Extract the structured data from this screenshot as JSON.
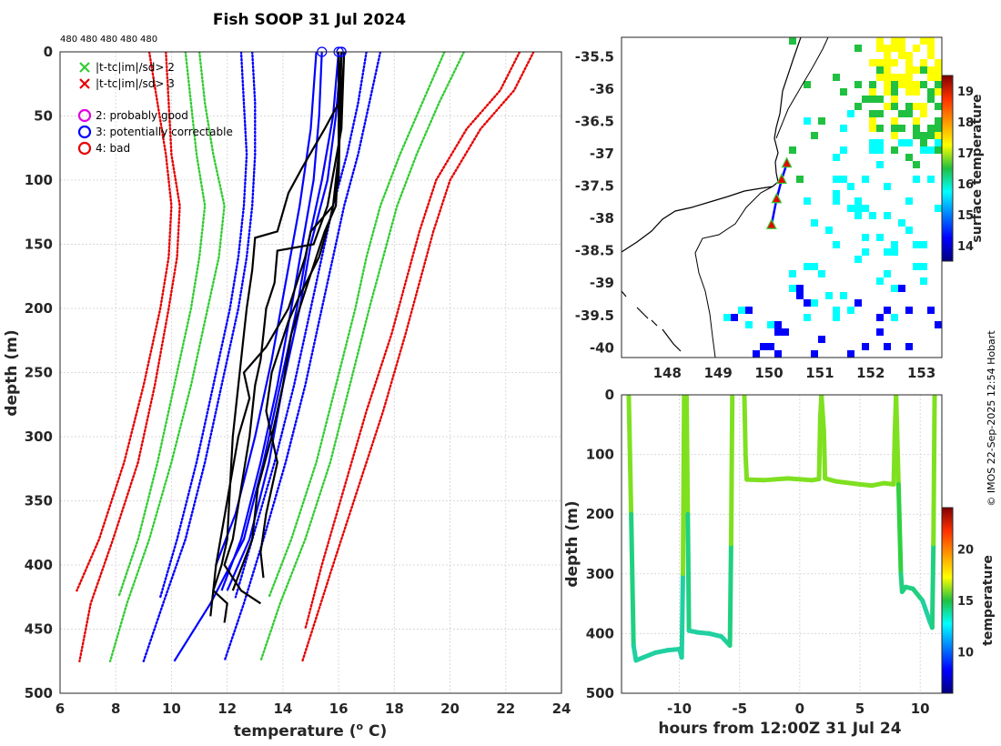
{
  "page": {
    "title": "Fish SOOP 31 Jul 2024",
    "credit": "© IMOS 22-Sep-2025 12:54 Hobart"
  },
  "colors": {
    "axis": "#262626",
    "grid": "#d9d9d9",
    "black": "#000000",
    "blue": "#0000ff",
    "green": "#33cc33",
    "red": "#e60000",
    "magenta": "#e000e0"
  },
  "chart_data": [
    {
      "id": "profiles",
      "type": "line",
      "xlabel": "temperature (",
      "xlabel_sup": "o",
      "xlabel_end": " C)",
      "ylabel": "depth (m)",
      "xlim": [
        6,
        24
      ],
      "ylim": [
        0,
        500
      ],
      "y_reversed": true,
      "xticks": [
        6,
        8,
        10,
        12,
        14,
        16,
        18,
        20,
        22,
        24
      ],
      "yticks": [
        0,
        50,
        100,
        150,
        200,
        250,
        300,
        350,
        400,
        450,
        500
      ],
      "top_labels": [
        "480",
        "480",
        "480",
        "480",
        "480"
      ],
      "legend": [
        {
          "marker": "x",
          "color": "#33cc33",
          "label": "|t-tc|im|/sd> 2"
        },
        {
          "marker": "x",
          "color": "#e60000",
          "label": "|t-tc|im|/sd> 3"
        },
        {
          "marker": "o",
          "color": "#e000e0",
          "label": "2: probably good"
        },
        {
          "marker": "o",
          "color": "#0000ff",
          "label": "3: potentially correctable"
        },
        {
          "marker": "o",
          "color": "#e60000",
          "label": "4: bad"
        }
      ],
      "climatology": [
        {
          "name": "red-left-a",
          "color": "#e60000",
          "depth": [
            0,
            40,
            80,
            120,
            160,
            200,
            260,
            320,
            380,
            420
          ],
          "temp": [
            9.2,
            9.5,
            9.8,
            10.0,
            9.9,
            9.6,
            9.0,
            8.3,
            7.4,
            6.6
          ]
        },
        {
          "name": "red-left-b",
          "color": "#e60000",
          "depth": [
            0,
            40,
            80,
            120,
            160,
            200,
            260,
            320,
            380,
            430,
            475
          ],
          "temp": [
            9.8,
            9.9,
            10.0,
            10.3,
            10.2,
            9.9,
            9.4,
            8.8,
            7.9,
            7.1,
            6.7
          ]
        },
        {
          "name": "green-left-a",
          "color": "#33cc33",
          "depth": [
            0,
            40,
            80,
            120,
            160,
            200,
            260,
            320,
            380,
            425
          ],
          "temp": [
            10.5,
            10.7,
            10.9,
            11.2,
            11.0,
            10.7,
            10.1,
            9.5,
            8.8,
            8.1
          ]
        },
        {
          "name": "green-left-b",
          "color": "#33cc33",
          "depth": [
            0,
            40,
            80,
            120,
            160,
            200,
            260,
            320,
            380,
            430,
            475
          ],
          "temp": [
            11.0,
            11.2,
            11.5,
            11.9,
            11.7,
            11.3,
            10.7,
            10.0,
            9.2,
            8.4,
            7.8
          ]
        },
        {
          "name": "blue-left-a",
          "color": "#0000ff",
          "depth": [
            0,
            40,
            80,
            120,
            160,
            200,
            260,
            320,
            380,
            425
          ],
          "temp": [
            12.5,
            12.6,
            12.7,
            12.6,
            12.4,
            12.1,
            11.5,
            10.9,
            10.2,
            9.6
          ]
        },
        {
          "name": "blue-left-b",
          "color": "#0000ff",
          "depth": [
            0,
            40,
            80,
            120,
            160,
            200,
            260,
            320,
            380,
            430,
            475
          ],
          "temp": [
            12.9,
            13.0,
            13.0,
            12.9,
            12.7,
            12.4,
            11.8,
            11.2,
            10.5,
            9.7,
            9.0
          ]
        },
        {
          "name": "blue-right-a",
          "color": "#0000ff",
          "depth": [
            0,
            40,
            80,
            120,
            160,
            200,
            260,
            320,
            380,
            425
          ],
          "temp": [
            17.0,
            16.7,
            16.3,
            15.8,
            15.4,
            15.0,
            14.4,
            13.7,
            12.9,
            12.3
          ]
        },
        {
          "name": "blue-right-b",
          "color": "#0000ff",
          "depth": [
            0,
            40,
            80,
            120,
            160,
            200,
            260,
            320,
            380,
            430,
            475
          ],
          "temp": [
            17.5,
            17.1,
            16.7,
            16.2,
            15.8,
            15.4,
            14.8,
            14.1,
            13.3,
            12.6,
            11.9
          ]
        },
        {
          "name": "green-right-a",
          "color": "#33cc33",
          "depth": [
            0,
            40,
            80,
            120,
            160,
            200,
            260,
            320,
            380,
            425
          ],
          "temp": [
            19.8,
            19.0,
            18.2,
            17.5,
            17.0,
            16.6,
            15.9,
            15.2,
            14.3,
            13.5
          ]
        },
        {
          "name": "green-right-b",
          "color": "#33cc33",
          "depth": [
            0,
            40,
            80,
            120,
            160,
            200,
            260,
            320,
            380,
            430,
            475
          ],
          "temp": [
            20.5,
            19.6,
            18.8,
            18.1,
            17.6,
            17.1,
            16.4,
            15.7,
            14.8,
            13.9,
            13.2
          ]
        },
        {
          "name": "red-right-a",
          "color": "#e60000",
          "depth": [
            0,
            30,
            60,
            100,
            140,
            180,
            220,
            280,
            340,
            400,
            450
          ],
          "temp": [
            22.5,
            21.8,
            20.6,
            19.5,
            18.9,
            18.4,
            17.9,
            17.0,
            16.2,
            15.4,
            14.8
          ]
        },
        {
          "name": "red-right-b",
          "color": "#e60000",
          "depth": [
            0,
            30,
            60,
            100,
            140,
            180,
            220,
            280,
            340,
            400,
            475
          ],
          "temp": [
            23.0,
            22.3,
            21.1,
            20.0,
            19.4,
            18.9,
            18.4,
            17.6,
            16.7,
            15.8,
            14.7
          ]
        }
      ],
      "blue_profiles": [
        {
          "depth": [
            0,
            50,
            100,
            150,
            200,
            260,
            320,
            380,
            420
          ],
          "temp": [
            15.4,
            15.3,
            15.1,
            14.7,
            14.3,
            13.8,
            13.2,
            12.5,
            11.8
          ]
        },
        {
          "depth": [
            0,
            50,
            100,
            150,
            200,
            260,
            320,
            380,
            430,
            475
          ],
          "temp": [
            16.0,
            15.8,
            15.4,
            14.9,
            14.5,
            13.9,
            13.3,
            12.6,
            11.4,
            10.1
          ]
        },
        {
          "depth": [
            0,
            50,
            100,
            150,
            200,
            260,
            320,
            380,
            420
          ],
          "temp": [
            16.1,
            15.9,
            15.6,
            15.0,
            14.6,
            14.0,
            13.5,
            12.8,
            12.0
          ]
        },
        {
          "depth": [
            0,
            60,
            120,
            180,
            240,
            300,
            360,
            400
          ],
          "temp": [
            15.2,
            15.0,
            14.6,
            14.1,
            13.6,
            13.0,
            12.3,
            11.6
          ]
        }
      ],
      "black_profiles": [
        {
          "depth": [
            0,
            40,
            60,
            90,
            110,
            140,
            145,
            170,
            200,
            220,
            260,
            300,
            340,
            380,
            400,
            420,
            430,
            445
          ],
          "temp": [
            16.1,
            16.0,
            15.5,
            14.7,
            14.2,
            13.8,
            13.0,
            12.9,
            12.7,
            12.6,
            12.4,
            12.2,
            12.1,
            12.0,
            11.8,
            11.5,
            12.0,
            11.9
          ]
        },
        {
          "depth": [
            0,
            60,
            120,
            150,
            155,
            180,
            200,
            220,
            240,
            260,
            300,
            340,
            380,
            400,
            420,
            430
          ],
          "temp": [
            16.2,
            16.1,
            15.6,
            15.1,
            13.8,
            13.7,
            13.4,
            13.3,
            13.2,
            13.0,
            12.8,
            12.5,
            12.2,
            11.9,
            12.5,
            13.2
          ]
        },
        {
          "depth": [
            0,
            80,
            120,
            140,
            160,
            200,
            230,
            250,
            270,
            300,
            350,
            400,
            440
          ],
          "temp": [
            16.0,
            16.0,
            15.8,
            15.0,
            14.8,
            14.2,
            13.4,
            12.6,
            12.8,
            12.4,
            12.0,
            11.6,
            11.4
          ]
        },
        {
          "depth": [
            0,
            100,
            130,
            160,
            190,
            210,
            250,
            280,
            320,
            360,
            390,
            410
          ],
          "temp": [
            16.1,
            16.0,
            15.7,
            15.3,
            14.6,
            14.2,
            13.6,
            13.4,
            13.8,
            13.4,
            13.2,
            13.3
          ]
        },
        {
          "depth": [
            0,
            120,
            140,
            180,
            220,
            260,
            300,
            340,
            380,
            420
          ],
          "temp": [
            16.2,
            15.9,
            15.5,
            14.9,
            14.3,
            14.0,
            13.6,
            13.1,
            12.9,
            12.2
          ]
        }
      ],
      "surface_markers": [
        15.4,
        16.0,
        16.1,
        16.1
      ]
    },
    {
      "id": "sst_map",
      "type": "heatmap",
      "xticks": [
        148,
        149,
        150,
        151,
        152,
        153
      ],
      "yticks": [
        -35.5,
        -36,
        -36.5,
        -37,
        -37.5,
        -38,
        -38.5,
        -39,
        -39.5,
        -40
      ],
      "xlim": [
        147.1,
        153.4
      ],
      "ylim": [
        -40.15,
        -35.2
      ],
      "colorbar_label": "surface temperature",
      "colorbar_ticks": [
        14,
        15,
        16,
        17,
        18,
        19
      ],
      "colorbar_range": [
        13.5,
        19.5
      ],
      "track_lon": [
        150.05,
        150.15,
        150.25,
        150.35
      ],
      "track_lat": [
        -38.1,
        -37.7,
        -37.4,
        -37.15
      ]
    },
    {
      "id": "timeseries",
      "type": "line",
      "xlabel": "hours from 12:00Z 31 Jul 24",
      "ylabel": "depth (m)",
      "xticks": [
        -10,
        -5,
        0,
        5,
        10
      ],
      "yticks": [
        0,
        100,
        200,
        300,
        400,
        500
      ],
      "xlim": [
        -14.8,
        11.8
      ],
      "ylim": [
        0,
        500
      ],
      "y_reversed": true,
      "colorbar_label": "temperature",
      "colorbar_ticks": [
        10,
        15,
        20
      ],
      "colorbar_range": [
        6,
        24
      ]
    }
  ]
}
